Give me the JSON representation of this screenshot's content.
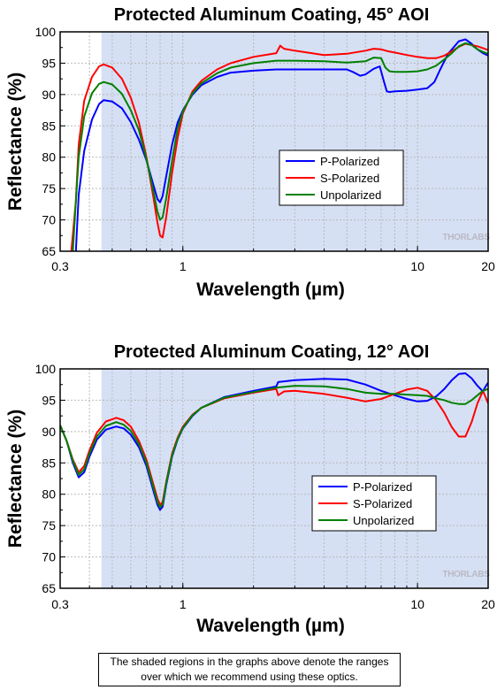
{
  "caption": {
    "line1": "The shaded regions in the graphs above denote the ranges",
    "line2": "over which we recommend using these optics."
  },
  "colors": {
    "shade": "#d6e0f4",
    "p_polarized": "#0000ff",
    "s_polarized": "#ff0000",
    "unpolarized": "#008000",
    "grid": "#b9b9b9"
  },
  "chart_data": [
    {
      "type": "line",
      "title": "Protected Aluminum Coating, 45° AOI",
      "xlabel": "Wavelength (µm)",
      "ylabel": "Reflectance (%)",
      "xscale": "log",
      "xlim": [
        0.3,
        20
      ],
      "ylim": [
        65,
        100
      ],
      "xticks": [
        0.3,
        1,
        10,
        20
      ],
      "xtick_labels": [
        "0.3",
        "1",
        "10",
        "20"
      ],
      "yticks": [
        65,
        70,
        75,
        80,
        85,
        90,
        95,
        100
      ],
      "ytick_labels": [
        "65",
        "70",
        "75",
        "80",
        "85",
        "90",
        "95",
        "100"
      ],
      "grid": true,
      "legend": "center-right",
      "watermark": "THORLABS",
      "shaded_range": [
        0.45,
        20
      ],
      "series": [
        {
          "name": "P-Polarized",
          "color": "#0000ff",
          "x": [
            0.35,
            0.36,
            0.38,
            0.41,
            0.44,
            0.46,
            0.5,
            0.55,
            0.6,
            0.65,
            0.7,
            0.75,
            0.78,
            0.8,
            0.82,
            0.85,
            0.9,
            0.95,
            1.0,
            1.1,
            1.2,
            1.4,
            1.6,
            2.0,
            2.5,
            3.0,
            4.0,
            5.0,
            5.3,
            5.7,
            6.0,
            6.5,
            6.9,
            7.2,
            7.4,
            7.6,
            8.0,
            9.0,
            10.0,
            11.0,
            11.8,
            12.5,
            13.5,
            15.0,
            16.0,
            17.0,
            18.0,
            19.0,
            20.0
          ],
          "y": [
            65,
            74,
            81,
            86,
            88.5,
            89.1,
            88.9,
            87.8,
            85.6,
            82.8,
            79.5,
            75.5,
            73.3,
            72.8,
            73.8,
            77,
            82,
            85.5,
            87.5,
            90,
            91.5,
            92.8,
            93.5,
            93.8,
            94,
            94,
            94,
            94,
            93.6,
            93,
            93.2,
            94.1,
            94.5,
            92,
            90.5,
            90.4,
            90.5,
            90.6,
            90.8,
            91,
            92,
            94,
            96.5,
            98.5,
            98.8,
            98.1,
            97.2,
            96.6,
            96.2
          ]
        },
        {
          "name": "S-Polarized",
          "color": "#ff0000",
          "x": [
            0.335,
            0.35,
            0.36,
            0.38,
            0.41,
            0.44,
            0.46,
            0.5,
            0.55,
            0.6,
            0.65,
            0.7,
            0.75,
            0.78,
            0.8,
            0.82,
            0.85,
            0.9,
            0.95,
            1.0,
            1.1,
            1.2,
            1.4,
            1.6,
            2.0,
            2.5,
            2.6,
            2.7,
            3.0,
            4.0,
            5.0,
            6.0,
            6.5,
            7.0,
            7.5,
            8.0,
            9.0,
            10.0,
            11.0,
            12.0,
            13.0,
            14.0,
            15.0,
            16.0,
            17.0,
            18.0,
            19.0,
            20.0
          ],
          "y": [
            65,
            73,
            82,
            89,
            92.8,
            94.5,
            94.8,
            94.3,
            92.5,
            89.5,
            85.5,
            80,
            73.5,
            69.5,
            67.5,
            67.2,
            70.5,
            77.5,
            83,
            87,
            90.5,
            92.2,
            94,
            95,
            96,
            96.6,
            97.8,
            97.3,
            97,
            96.3,
            96.5,
            97,
            97.3,
            97.2,
            96.9,
            96.7,
            96.3,
            96,
            95.8,
            95.8,
            96.2,
            96.9,
            97.6,
            98.1,
            97.9,
            97.7,
            97.4,
            97.1
          ]
        },
        {
          "name": "Unpolarized",
          "color": "#008000",
          "x": [
            0.34,
            0.35,
            0.36,
            0.38,
            0.41,
            0.44,
            0.46,
            0.5,
            0.55,
            0.6,
            0.65,
            0.7,
            0.75,
            0.78,
            0.8,
            0.82,
            0.85,
            0.9,
            0.95,
            1.0,
            1.1,
            1.2,
            1.4,
            1.6,
            2.0,
            2.5,
            3.0,
            4.0,
            5.0,
            6.0,
            6.5,
            7.0,
            7.3,
            7.6,
            8.0,
            9.0,
            10.0,
            11.0,
            12.0,
            13.0,
            14.0,
            15.0,
            16.0,
            17.0,
            18.0,
            19.0,
            20.0
          ],
          "y": [
            65,
            73,
            80,
            86.5,
            90.2,
            91.7,
            92,
            91.6,
            90.1,
            87.5,
            84.3,
            79.7,
            74.5,
            71.3,
            70,
            70.4,
            73.5,
            79.5,
            84.5,
            87.3,
            90.2,
            91.8,
            93.4,
            94.3,
            95,
            95.4,
            95.4,
            95.3,
            95.1,
            95.3,
            95.9,
            95.8,
            94.3,
            93.7,
            93.6,
            93.6,
            93.7,
            94,
            94.6,
            95.6,
            96.6,
            97.7,
            98.2,
            97.9,
            97.2,
            96.8,
            96.5
          ]
        }
      ]
    },
    {
      "type": "line",
      "title": "Protected Aluminum Coating, 12° AOI",
      "xlabel": "Wavelength (µm)",
      "ylabel": "Reflectance (%)",
      "xscale": "log",
      "xlim": [
        0.3,
        20
      ],
      "ylim": [
        65,
        100
      ],
      "xticks": [
        0.3,
        1,
        10,
        20
      ],
      "xtick_labels": [
        "0.3",
        "1",
        "10",
        "20"
      ],
      "yticks": [
        65,
        70,
        75,
        80,
        85,
        90,
        95,
        100
      ],
      "ytick_labels": [
        "65",
        "70",
        "75",
        "80",
        "85",
        "90",
        "95",
        "100"
      ],
      "grid": true,
      "legend": "center-right",
      "watermark": "THORLABS",
      "shaded_range": [
        0.45,
        20
      ],
      "series": [
        {
          "name": "P-Polarized",
          "color": "#0000ff",
          "x": [
            0.3,
            0.32,
            0.34,
            0.36,
            0.38,
            0.4,
            0.43,
            0.47,
            0.52,
            0.56,
            0.6,
            0.65,
            0.7,
            0.75,
            0.78,
            0.8,
            0.82,
            0.85,
            0.9,
            0.95,
            1.0,
            1.1,
            1.2,
            1.5,
            2.0,
            2.5,
            2.55,
            3.0,
            4.0,
            5.0,
            6.0,
            7.0,
            8.0,
            9.0,
            10.0,
            11.0,
            12.0,
            13.0,
            14.0,
            15.0,
            16.0,
            17.0,
            18.0,
            19.0,
            19.5,
            20.0
          ],
          "y": [
            91,
            88.5,
            85,
            82.7,
            83.5,
            86,
            88.7,
            90.3,
            90.8,
            90.5,
            89.5,
            87.5,
            84.5,
            80.5,
            78.3,
            77.5,
            78,
            81.5,
            86,
            88.7,
            90.5,
            92.5,
            93.8,
            95.5,
            96.5,
            97.2,
            97.9,
            98.2,
            98.4,
            98.3,
            97.5,
            96.5,
            95.8,
            95.2,
            94.8,
            94.9,
            95.6,
            96.8,
            98.2,
            99.2,
            99.3,
            98.5,
            97.3,
            96.4,
            97.2,
            97.8
          ]
        },
        {
          "name": "S-Polarized",
          "color": "#ff0000",
          "x": [
            0.3,
            0.32,
            0.34,
            0.36,
            0.38,
            0.4,
            0.43,
            0.47,
            0.52,
            0.56,
            0.6,
            0.65,
            0.7,
            0.75,
            0.78,
            0.8,
            0.82,
            0.85,
            0.9,
            0.95,
            1.0,
            1.1,
            1.2,
            1.5,
            2.0,
            2.5,
            2.55,
            2.7,
            3.0,
            4.0,
            5.0,
            6.0,
            7.0,
            8.0,
            9.0,
            10.0,
            11.0,
            12.0,
            13.0,
            14.0,
            15.0,
            16.0,
            17.0,
            18.0,
            19.0,
            20.0
          ],
          "y": [
            91,
            88.5,
            85.5,
            83.5,
            84.5,
            87,
            89.8,
            91.6,
            92.2,
            91.8,
            90.8,
            88.5,
            85.5,
            81.5,
            79.3,
            78.3,
            78.8,
            82,
            86.5,
            89,
            90.8,
            92.7,
            93.8,
            95.3,
            96.2,
            96.8,
            95.8,
            96.4,
            96.5,
            96,
            95.4,
            94.8,
            95.2,
            96,
            96.7,
            97,
            96.5,
            95,
            93,
            90.7,
            89.2,
            89.2,
            91.5,
            94.5,
            96.5,
            94.5
          ]
        },
        {
          "name": "Unpolarized",
          "color": "#008000",
          "x": [
            0.3,
            0.32,
            0.34,
            0.36,
            0.38,
            0.4,
            0.43,
            0.47,
            0.52,
            0.56,
            0.6,
            0.65,
            0.7,
            0.75,
            0.78,
            0.8,
            0.82,
            0.85,
            0.9,
            0.95,
            1.0,
            1.1,
            1.2,
            1.5,
            2.0,
            2.5,
            3.0,
            4.0,
            5.0,
            6.0,
            7.0,
            8.0,
            9.0,
            10.0,
            11.0,
            12.0,
            13.0,
            14.0,
            15.0,
            16.0,
            17.0,
            18.0,
            19.0,
            20.0
          ],
          "y": [
            91,
            88.5,
            85.3,
            83.1,
            84,
            86.5,
            89.2,
            90.9,
            91.5,
            91.1,
            90.1,
            88,
            85,
            81,
            78.8,
            77.9,
            78.4,
            81.8,
            86.2,
            88.8,
            90.6,
            92.6,
            93.8,
            95.4,
            96.3,
            97,
            97.3,
            97.2,
            96.8,
            96.2,
            96,
            96,
            95.9,
            95.8,
            95.7,
            95.3,
            95,
            94.6,
            94.4,
            94.4,
            95,
            95.8,
            96.5,
            96.8
          ]
        }
      ]
    }
  ]
}
